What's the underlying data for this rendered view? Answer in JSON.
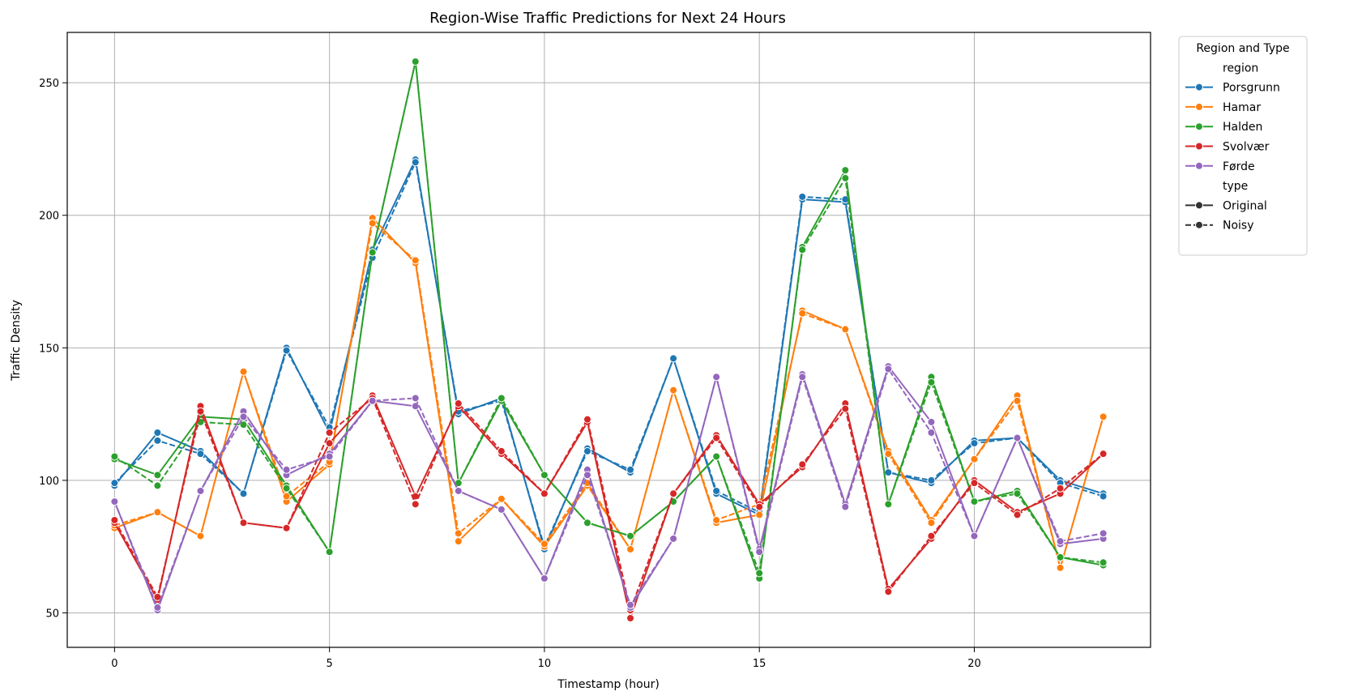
{
  "chart_data": {
    "type": "line",
    "title": "Region-Wise Traffic Predictions for Next 24 Hours",
    "xlabel": "Timestamp (hour)",
    "ylabel": "Traffic Density",
    "xlim": [
      -1.1,
      24.1
    ],
    "ylim": [
      37,
      269
    ],
    "xticks": [
      0,
      5,
      10,
      15,
      20
    ],
    "yticks": [
      50,
      100,
      150,
      200,
      250
    ],
    "grid": true,
    "legend": {
      "placement": "outside-top-right",
      "title": "Region and Type",
      "region_header": "region",
      "type_header": "type",
      "type_labels": [
        "Original",
        "Noisy"
      ]
    },
    "x": [
      0,
      1,
      2,
      3,
      4,
      5,
      6,
      7,
      8,
      9,
      10,
      11,
      12,
      13,
      14,
      15,
      16,
      17,
      18,
      19,
      20,
      21,
      22,
      23
    ],
    "series": [
      {
        "name": "Porsgrunn",
        "color": "#1f77b4",
        "original": [
          98,
          118,
          111,
          95,
          150,
          118,
          187,
          221,
          125,
          131,
          74,
          112,
          103,
          146,
          95,
          87,
          206,
          205,
          103,
          99,
          115,
          116,
          100,
          95
        ],
        "noisy": [
          99,
          115,
          110,
          95,
          149,
          120,
          184,
          220,
          126,
          130,
          75,
          111,
          104,
          146,
          96,
          88,
          207,
          206,
          103,
          100,
          114,
          116,
          99,
          94
        ]
      },
      {
        "name": "Hamar",
        "color": "#ff7f0e",
        "original": [
          82,
          88,
          79,
          141,
          92,
          106,
          199,
          182,
          77,
          93,
          75,
          98,
          74,
          134,
          84,
          87,
          164,
          157,
          111,
          85,
          108,
          132,
          67,
          124
        ],
        "noisy": [
          83,
          88,
          79,
          141,
          94,
          107,
          197,
          183,
          80,
          93,
          76,
          99,
          74,
          134,
          85,
          91,
          163,
          157,
          110,
          84,
          108,
          130,
          67,
          124
        ]
      },
      {
        "name": "Halden",
        "color": "#2ca02c",
        "original": [
          108,
          102,
          124,
          123,
          98,
          73,
          186,
          258,
          99,
          130,
          102,
          84,
          79,
          92,
          109,
          63,
          188,
          217,
          91,
          139,
          92,
          96,
          71,
          68
        ],
        "noisy": [
          109,
          98,
          122,
          121,
          97,
          73,
          186,
          258,
          99,
          131,
          102,
          84,
          79,
          92,
          109,
          65,
          187,
          214,
          91,
          137,
          92,
          95,
          71,
          69
        ]
      },
      {
        "name": "Svolvær",
        "color": "#d62728",
        "original": [
          84,
          55,
          128,
          84,
          82,
          114,
          132,
          94,
          128,
          110,
          95,
          122,
          48,
          95,
          117,
          91,
          105,
          129,
          59,
          78,
          100,
          88,
          95,
          110
        ],
        "noisy": [
          85,
          56,
          126,
          84,
          82,
          118,
          131,
          91,
          129,
          111,
          95,
          123,
          51,
          95,
          116,
          90,
          106,
          127,
          58,
          79,
          99,
          87,
          97,
          110
        ]
      },
      {
        "name": "Førde",
        "color": "#9467bd",
        "original": [
          92,
          51,
          96,
          126,
          102,
          110,
          130,
          128,
          96,
          89,
          63,
          104,
          52,
          78,
          139,
          74,
          140,
          91,
          143,
          122,
          79,
          116,
          76,
          78
        ],
        "noisy": [
          92,
          52,
          96,
          124,
          104,
          109,
          130,
          131,
          96,
          89,
          63,
          102,
          53,
          78,
          139,
          73,
          139,
          90,
          142,
          118,
          79,
          116,
          77,
          80
        ]
      }
    ]
  }
}
